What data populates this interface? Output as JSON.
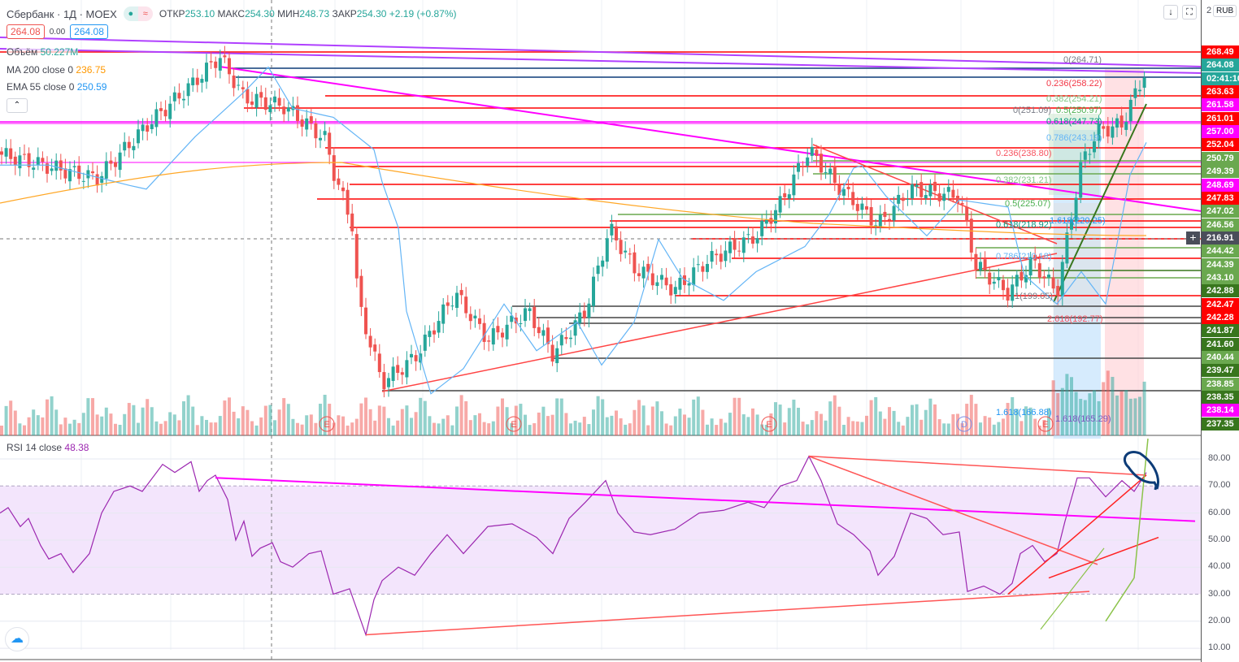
{
  "header": {
    "symbol": "Сбербанк · 1Д · MOEX",
    "open_label": "ОТКР",
    "open": "253.10",
    "high_label": "МАКС",
    "high": "254.30",
    "low_label": "МИН",
    "low": "248.73",
    "close_label": "ЗАКР",
    "close": "254.30",
    "change": "+2.19 (+0.87%)"
  },
  "quote": {
    "bid": "264.08",
    "spread": "0.00",
    "ask": "264.08"
  },
  "legend": {
    "volume_label": "Объём",
    "volume": "50.227M",
    "ma_label": "MA 200 close 0",
    "ma": "236.75",
    "ema_label": "EMA 55 close 0",
    "ema": "250.59",
    "rsi_label": "RSI 14 close",
    "rsi": "48.38"
  },
  "toolbar": {
    "currency": "RUB",
    "scroll_icon": "↓",
    "fullscreen_icon": "⛶",
    "axis_partial": "2"
  },
  "colors": {
    "up": "#26a69a",
    "down": "#ef5350",
    "red": "#ff0000",
    "magenta": "#ff00ff",
    "green": "#6aa84f",
    "darkgreen": "#38761d",
    "teal": "#26a69a",
    "gray": "#4a4e5a",
    "ema": "#64b5f6",
    "ma": "#ffa726",
    "rsi": "#9c27b0"
  },
  "price_labels": [
    {
      "v": "268.49",
      "c": "red"
    },
    {
      "v": "264.08",
      "c": "teal"
    },
    {
      "v": "02:41:10",
      "c": "teal"
    },
    {
      "v": "263.63",
      "c": "red"
    },
    {
      "v": "261.58",
      "c": "magenta"
    },
    {
      "v": "261.01",
      "c": "red"
    },
    {
      "v": "257.00",
      "c": "magenta"
    },
    {
      "v": "252.04",
      "c": "red"
    },
    {
      "v": "250.79",
      "c": "green"
    },
    {
      "v": "249.39",
      "c": "green"
    },
    {
      "v": "248.69",
      "c": "magenta"
    },
    {
      "v": "247.83",
      "c": "red"
    },
    {
      "v": "247.02",
      "c": "green"
    },
    {
      "v": "246.56",
      "c": "green"
    },
    {
      "v": "216.91",
      "c": "gray"
    },
    {
      "v": "244.42",
      "c": "green"
    },
    {
      "v": "244.39",
      "c": "green"
    },
    {
      "v": "243.10",
      "c": "green"
    },
    {
      "v": "242.88",
      "c": "darkgreen"
    },
    {
      "v": "242.47",
      "c": "red"
    },
    {
      "v": "242.28",
      "c": "red"
    },
    {
      "v": "241.87",
      "c": "darkgreen"
    },
    {
      "v": "241.60",
      "c": "darkgreen"
    },
    {
      "v": "240.44",
      "c": "green"
    },
    {
      "v": "239.47",
      "c": "darkgreen"
    },
    {
      "v": "238.85",
      "c": "green"
    },
    {
      "v": "238.35",
      "c": "darkgreen"
    },
    {
      "v": "238.14",
      "c": "magenta"
    },
    {
      "v": "237.35",
      "c": "darkgreen"
    }
  ],
  "fib_labels": [
    {
      "t": "0(264.71)",
      "c": "#787b86",
      "x": 1308,
      "y": 68
    },
    {
      "t": "0.236(258.22)",
      "c": "#f23645",
      "x": 1287,
      "y": 97
    },
    {
      "t": "0.382(254.21)",
      "c": "#81c784",
      "x": 1287,
      "y": 116
    },
    {
      "t": "0(251.09)",
      "c": "#787b86",
      "x": 1246,
      "y": 130
    },
    {
      "t": "0.5(250.97)",
      "c": "#4caf50",
      "x": 1299,
      "y": 130
    },
    {
      "t": "0.618(247.73)",
      "c": "#089981",
      "x": 1287,
      "y": 144
    },
    {
      "t": "0.786(243.19)",
      "c": "#64b5f6",
      "x": 1287,
      "y": 164
    },
    {
      "t": "0.236(238.80)",
      "c": "#f7525f",
      "x": 1225,
      "y": 183
    },
    {
      "t": "0.382(231.21)",
      "c": "#81c784",
      "x": 1225,
      "y": 216
    },
    {
      "t": "0.5(225.07)",
      "c": "#4caf50",
      "x": 1236,
      "y": 245
    },
    {
      "t": "0.618(218.92)",
      "c": "#089981",
      "x": 1225,
      "y": 271
    },
    {
      "t": "1.618(220.25)",
      "c": "#2196f3",
      "x": 1291,
      "y": 266
    },
    {
      "t": "0.786(210.18)",
      "c": "#64b5f6",
      "x": 1225,
      "y": 310
    },
    {
      "t": "1(199.05)",
      "c": "#787b86",
      "x": 1248,
      "y": 359
    },
    {
      "t": "2.618(192.77)",
      "c": "#f7525f",
      "x": 1288,
      "y": 387
    },
    {
      "t": "1.618(166.88)",
      "c": "#2196f3",
      "x": 1225,
      "y": 502
    },
    {
      "t": "1.618(165.29)",
      "c": "#7e57c2",
      "x": 1298,
      "y": 510
    }
  ],
  "rsi_axis": [
    "80.00",
    "70.00",
    "60.00",
    "50.00",
    "40.00",
    "30.00",
    "20.00",
    "10.00"
  ],
  "chart_data": {
    "type": "candlestick",
    "price_axis_range": [
      160,
      270
    ],
    "close_path": [
      [
        0,
        238.7
      ],
      [
        100,
        233
      ],
      [
        120,
        232
      ],
      [
        180,
        246.6
      ],
      [
        240,
        259
      ],
      [
        270,
        266
      ],
      [
        300,
        254.5
      ],
      [
        350,
        252
      ],
      [
        400,
        243
      ],
      [
        410,
        234
      ],
      [
        435,
        218
      ],
      [
        440,
        198
      ],
      [
        470,
        175
      ],
      [
        510,
        182
      ],
      [
        560,
        200
      ],
      [
        600,
        187
      ],
      [
        650,
        195
      ],
      [
        680,
        183
      ],
      [
        720,
        195
      ],
      [
        750,
        218
      ],
      [
        780,
        207
      ],
      [
        830,
        201
      ],
      [
        870,
        209
      ],
      [
        930,
        216
      ],
      [
        960,
        225
      ],
      [
        995,
        240
      ],
      [
        1030,
        230
      ],
      [
        1080,
        219
      ],
      [
        1120,
        229
      ],
      [
        1180,
        227
      ],
      [
        1200,
        208
      ],
      [
        1240,
        200
      ],
      [
        1270,
        209
      ],
      [
        1300,
        200
      ],
      [
        1330,
        236
      ],
      [
        1350,
        245
      ],
      [
        1380,
        247
      ],
      [
        1410,
        262.5
      ]
    ],
    "rsi_path": [
      [
        0,
        60
      ],
      [
        10,
        62
      ],
      [
        25,
        55
      ],
      [
        35,
        58
      ],
      [
        50,
        48
      ],
      [
        60,
        43
      ],
      [
        75,
        45
      ],
      [
        90,
        38
      ],
      [
        110,
        45
      ],
      [
        125,
        60
      ],
      [
        140,
        68
      ],
      [
        160,
        70
      ],
      [
        175,
        68
      ],
      [
        200,
        78
      ],
      [
        215,
        75
      ],
      [
        235,
        79
      ],
      [
        245,
        68
      ],
      [
        255,
        72
      ],
      [
        265,
        74
      ],
      [
        280,
        65
      ],
      [
        290,
        50
      ],
      [
        300,
        57
      ],
      [
        310,
        44
      ],
      [
        320,
        47
      ],
      [
        335,
        49
      ],
      [
        345,
        42
      ],
      [
        360,
        40
      ],
      [
        380,
        45
      ],
      [
        395,
        46
      ],
      [
        410,
        30
      ],
      [
        430,
        32
      ],
      [
        450,
        15
      ],
      [
        460,
        28
      ],
      [
        470,
        35
      ],
      [
        490,
        40
      ],
      [
        510,
        37
      ],
      [
        530,
        45
      ],
      [
        550,
        52
      ],
      [
        570,
        45
      ],
      [
        600,
        55
      ],
      [
        630,
        56
      ],
      [
        660,
        51
      ],
      [
        680,
        45
      ],
      [
        700,
        58
      ],
      [
        720,
        64
      ],
      [
        745,
        72
      ],
      [
        760,
        60
      ],
      [
        780,
        53
      ],
      [
        800,
        52
      ],
      [
        830,
        54
      ],
      [
        860,
        60
      ],
      [
        890,
        61
      ],
      [
        920,
        64
      ],
      [
        940,
        62
      ],
      [
        960,
        70
      ],
      [
        980,
        72
      ],
      [
        995,
        81
      ],
      [
        1010,
        72
      ],
      [
        1030,
        56
      ],
      [
        1050,
        52
      ],
      [
        1070,
        46
      ],
      [
        1080,
        37
      ],
      [
        1100,
        44
      ],
      [
        1120,
        60
      ],
      [
        1140,
        58
      ],
      [
        1160,
        52
      ],
      [
        1180,
        53
      ],
      [
        1190,
        31
      ],
      [
        1210,
        33
      ],
      [
        1230,
        30
      ],
      [
        1245,
        34
      ],
      [
        1255,
        45
      ],
      [
        1270,
        48
      ],
      [
        1285,
        42
      ],
      [
        1300,
        45
      ],
      [
        1310,
        57
      ],
      [
        1325,
        73
      ],
      [
        1340,
        73
      ],
      [
        1360,
        66
      ],
      [
        1380,
        72
      ],
      [
        1395,
        68
      ],
      [
        1410,
        75
      ]
    ],
    "rsi_range": [
      10,
      80
    ],
    "rsi_band": [
      30,
      70
    ]
  }
}
